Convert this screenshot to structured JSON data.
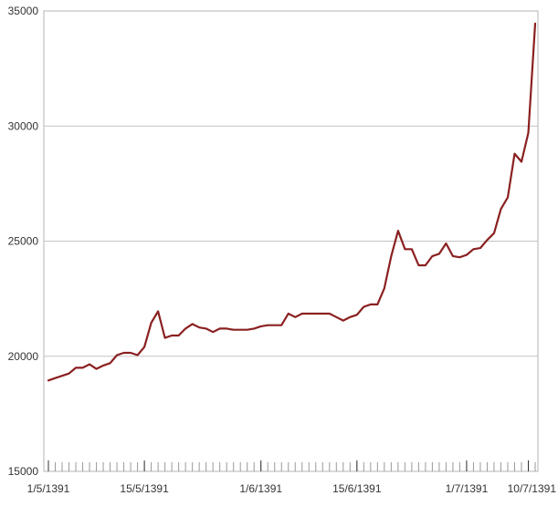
{
  "chart_data": {
    "type": "line",
    "title": "",
    "xlabel": "",
    "ylabel": "",
    "ylim": [
      15000,
      35000
    ],
    "yticks": [
      15000,
      20000,
      25000,
      30000,
      35000
    ],
    "ytick_labels": [
      "15000",
      "20000",
      "25000",
      "30000",
      "35000"
    ],
    "xtick_labels": [
      "1/5/1391",
      "15/5/1391",
      "1/6/1391",
      "15/6/1391",
      "1/7/1391",
      "10/7/1391"
    ],
    "xtick_indices": [
      0,
      14,
      31,
      45,
      61,
      70
    ],
    "grid": true,
    "line_color": "#8b2020",
    "series": [
      {
        "values": [
          18950,
          19050,
          19150,
          19250,
          19500,
          19500,
          19650,
          19450,
          19600,
          19700,
          20050,
          20150,
          20150,
          20050,
          20400,
          21450,
          21950,
          20800,
          20900,
          20900,
          21200,
          21400,
          21250,
          21200,
          21050,
          21200,
          21200,
          21150,
          21150,
          21150,
          21200,
          21300,
          21350,
          21350,
          21350,
          21850,
          21700,
          21850,
          21850,
          21850,
          21850,
          21850,
          21700,
          21550,
          21700,
          21800,
          22150,
          22250,
          22250,
          22950,
          24350,
          25450,
          24650,
          24650,
          23950,
          23950,
          24350,
          24450,
          24900,
          24350,
          24300,
          24400,
          24650,
          24700,
          25050,
          25350,
          26400,
          26900,
          28800,
          28450,
          29700,
          34450
        ]
      }
    ]
  }
}
